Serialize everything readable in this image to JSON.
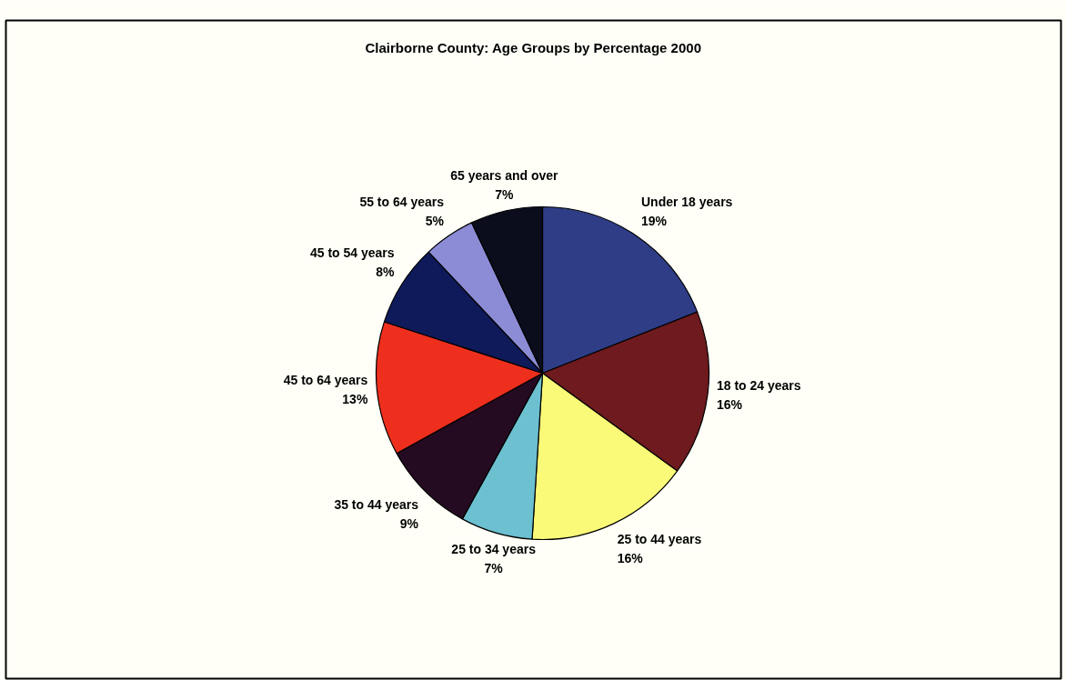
{
  "chart_data": {
    "type": "pie",
    "title": "Clairborne County: Age Groups by Percentage 2000",
    "categories": [
      "Under 18 years",
      "18 to 24 years",
      "25 to 44 years",
      "25 to 34 years",
      "35 to 44 years",
      "45 to 64 years",
      "45 to 54 years",
      "55 to 64 years",
      "65 years and over"
    ],
    "values": [
      19,
      16,
      16,
      7,
      9,
      13,
      8,
      5,
      7
    ],
    "colors": [
      "#2e3d86",
      "#6e1a1e",
      "#fbfa78",
      "#6cc0d0",
      "#250b22",
      "#ee2f1e",
      "#0f1a5a",
      "#8c8cd6",
      "#0b0d1c"
    ],
    "value_labels": [
      "19%",
      "16%",
      "16%",
      "7%",
      "9%",
      "13%",
      "8%",
      "5%",
      "7%"
    ]
  }
}
